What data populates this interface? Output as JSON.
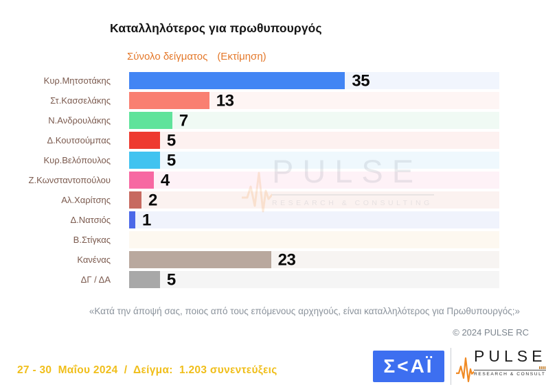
{
  "header": {
    "title": "Καταλληλότερος για πρωθυπουργός",
    "subtitle": "Σύνολο δείγματος",
    "subtitle_note": "(Εκτίμηση)"
  },
  "chart_data": {
    "type": "bar",
    "orientation": "horizontal",
    "title": "Καταλληλότερος για πρωθυπουργός",
    "subtitle": "Σύνολο δείγματος (Εκτίμηση)",
    "xlim": [
      0,
      60
    ],
    "grid": false,
    "legend": false,
    "categories": [
      "Κυρ.Μητσοτάκης",
      "Στ.Κασσελάκης",
      "Ν.Ανδρουλάκης",
      "Δ.Κουτσούμπας",
      "Κυρ.Βελόπουλος",
      "Ζ.Κωνσταντοπούλου",
      "Αλ.Χαρίτσης",
      "Δ.Νατσιός",
      "Β.Στίγκας",
      "Κανένας",
      "ΔΓ / ΔΑ"
    ],
    "values": [
      35,
      13,
      7,
      5,
      5,
      4,
      2,
      1,
      null,
      23,
      5
    ],
    "bar_colors": [
      "#4285F4",
      "#F97F71",
      "#5FE39B",
      "#EE3A30",
      "#41C3F0",
      "#F768A2",
      "#C76A60",
      "#4B68E8",
      null,
      "#B9A89E",
      "#A8A8A8"
    ],
    "row_bg_colors": [
      "#F1F5FD",
      "#FEF5F4",
      "#F0FAF4",
      "#FDF1F0",
      "#EFF8FD",
      "#FEF2F7",
      "#FBF2F0",
      "#F0F3FC",
      "#FDF8F0",
      "#F7F4F2",
      "#F5F5F5"
    ]
  },
  "watermark": {
    "brand": "PULSE",
    "tagline": "RESEARCH & CONSULTING"
  },
  "question": "«Κατά την άποψή σας, ποιος από τους επόμενους αρχηγούς, είναι καταλληλότερος για Πρωθυπουργός;»",
  "copyright": "© 2024 PULSE RC",
  "footer": {
    "fieldwork": "27 - 30  Μαΐου 2024  /  Δείγμα:  1.203 συνεντεύξεις",
    "skai_logo": "Σ<ΑΪ",
    "pulse_logo": "PULSE",
    "pulse_tagline": "RESEARCH & CONSULTING"
  },
  "colors": {
    "accent_orange": "#E4782A",
    "footer_yellow": "#F0BE1A",
    "label_brown": "#7B5A4E",
    "skai_blue": "#3D6FF0",
    "pulse_orange": "#F08A24",
    "value_text": "#0A0A0A"
  }
}
